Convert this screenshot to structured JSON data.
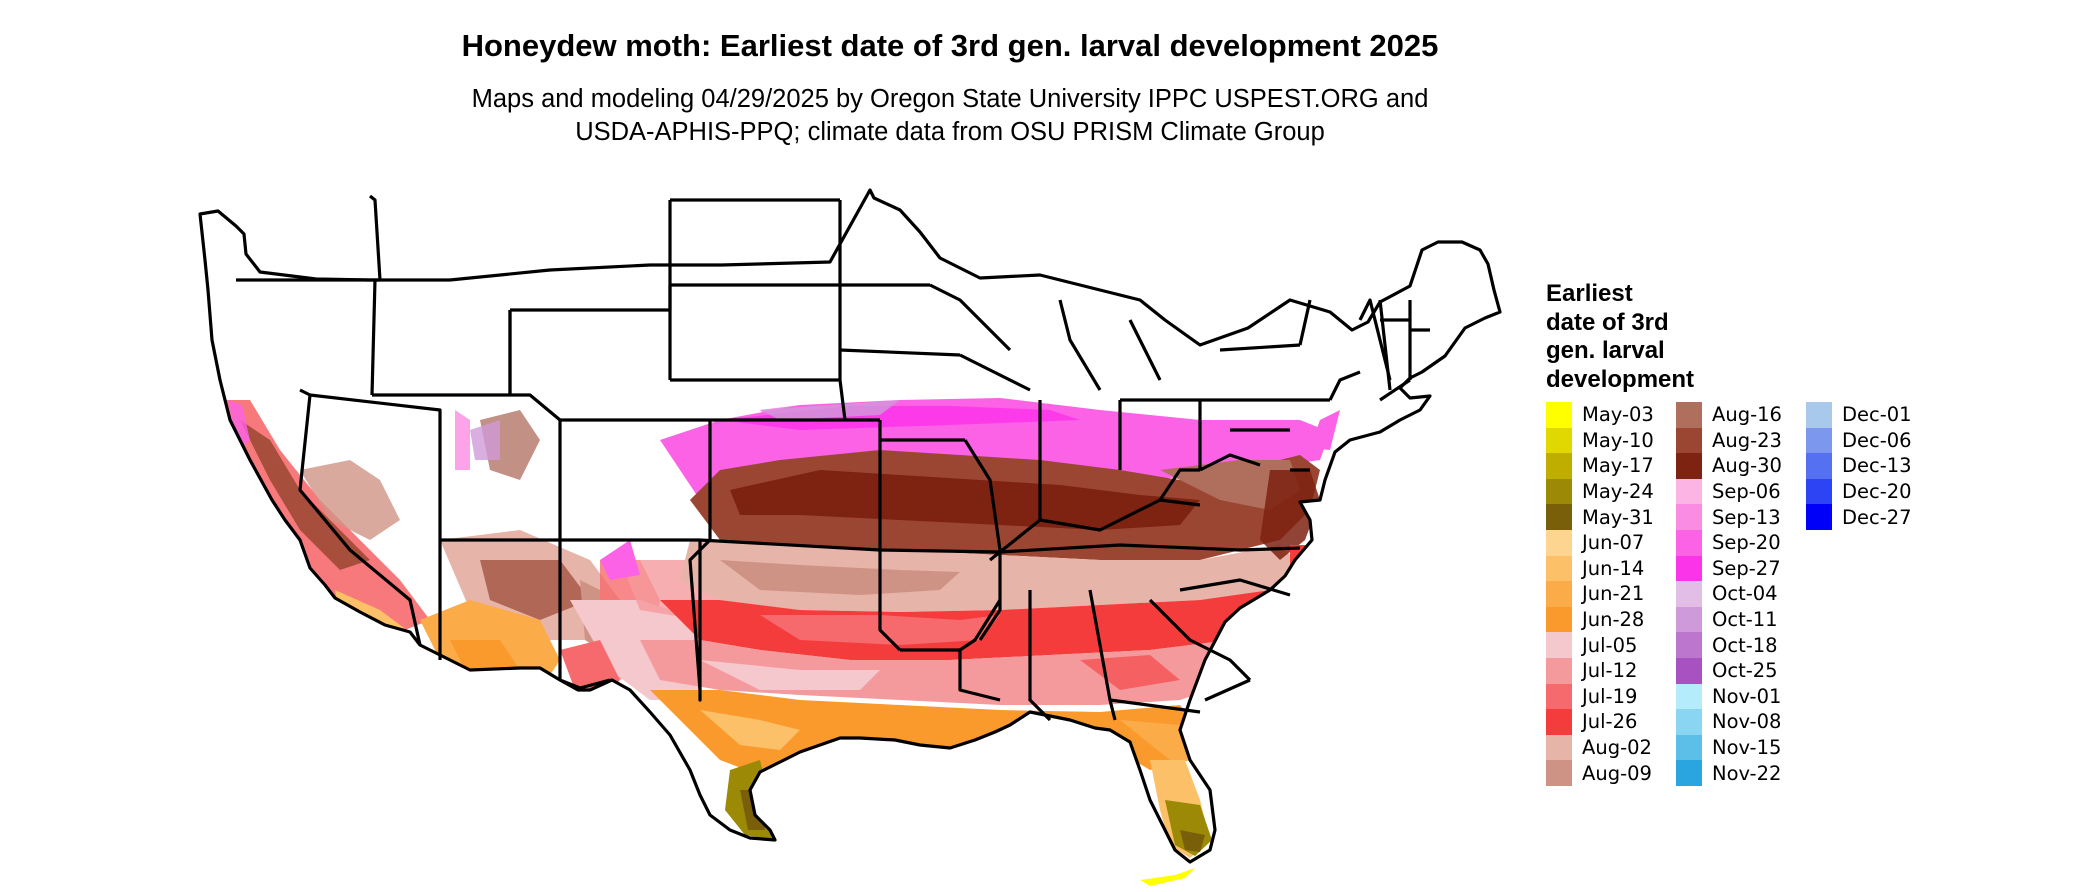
{
  "title": "Honeydew moth: Earliest date of 3rd gen. larval development 2025",
  "subtitle_lines": [
    "Maps and modeling 04/29/2025 by Oregon State University IPPC USPEST.ORG and",
    "USDA-APHIS-PPQ; climate data from OSU PRISM Climate Group"
  ],
  "legend": {
    "title_lines": [
      "Earliest",
      "date of 3rd",
      "gen. larval",
      "development"
    ],
    "columns": [
      [
        {
          "label": "May-03",
          "color": "#ffff00"
        },
        {
          "label": "May-10",
          "color": "#e0d800"
        },
        {
          "label": "May-17",
          "color": "#bfae00"
        },
        {
          "label": "May-24",
          "color": "#9c8a07"
        },
        {
          "label": "May-31",
          "color": "#7a5f0a"
        },
        {
          "label": "Jun-07",
          "color": "#fdd490"
        },
        {
          "label": "Jun-14",
          "color": "#fcc068"
        },
        {
          "label": "Jun-21",
          "color": "#fbab48"
        },
        {
          "label": "Jun-28",
          "color": "#fa9a2c"
        },
        {
          "label": "Jul-05",
          "color": "#f5c8cd"
        },
        {
          "label": "Jul-12",
          "color": "#f59a9c"
        },
        {
          "label": "Jul-19",
          "color": "#f66a6d"
        },
        {
          "label": "Jul-26",
          "color": "#f53c3c"
        },
        {
          "label": "Aug-02",
          "color": "#e7b4aa"
        },
        {
          "label": "Aug-09",
          "color": "#cf9386"
        }
      ],
      [
        {
          "label": "Aug-16",
          "color": "#b06f5d"
        },
        {
          "label": "Aug-23",
          "color": "#9a4632"
        },
        {
          "label": "Aug-30",
          "color": "#7e2212"
        },
        {
          "label": "Sep-06",
          "color": "#fbb4e4"
        },
        {
          "label": "Sep-13",
          "color": "#fb8ce4"
        },
        {
          "label": "Sep-20",
          "color": "#fb62e6"
        },
        {
          "label": "Sep-27",
          "color": "#fb34ea"
        },
        {
          "label": "Oct-04",
          "color": "#e2bde6"
        },
        {
          "label": "Oct-11",
          "color": "#cf9ad9"
        },
        {
          "label": "Oct-18",
          "color": "#bd76ce"
        },
        {
          "label": "Oct-25",
          "color": "#a752c0"
        },
        {
          "label": "Nov-01",
          "color": "#b4ecfc"
        },
        {
          "label": "Nov-08",
          "color": "#8ad6f2"
        },
        {
          "label": "Nov-15",
          "color": "#5cbfe8"
        },
        {
          "label": "Nov-22",
          "color": "#2aa5e0"
        }
      ],
      [
        {
          "label": "Dec-01",
          "color": "#a8c8ec"
        },
        {
          "label": "Dec-06",
          "color": "#7c98ee"
        },
        {
          "label": "Dec-13",
          "color": "#5570f0"
        },
        {
          "label": "Dec-20",
          "color": "#2c44f4"
        },
        {
          "label": "Dec-27",
          "color": "#0000f8"
        }
      ]
    ]
  }
}
